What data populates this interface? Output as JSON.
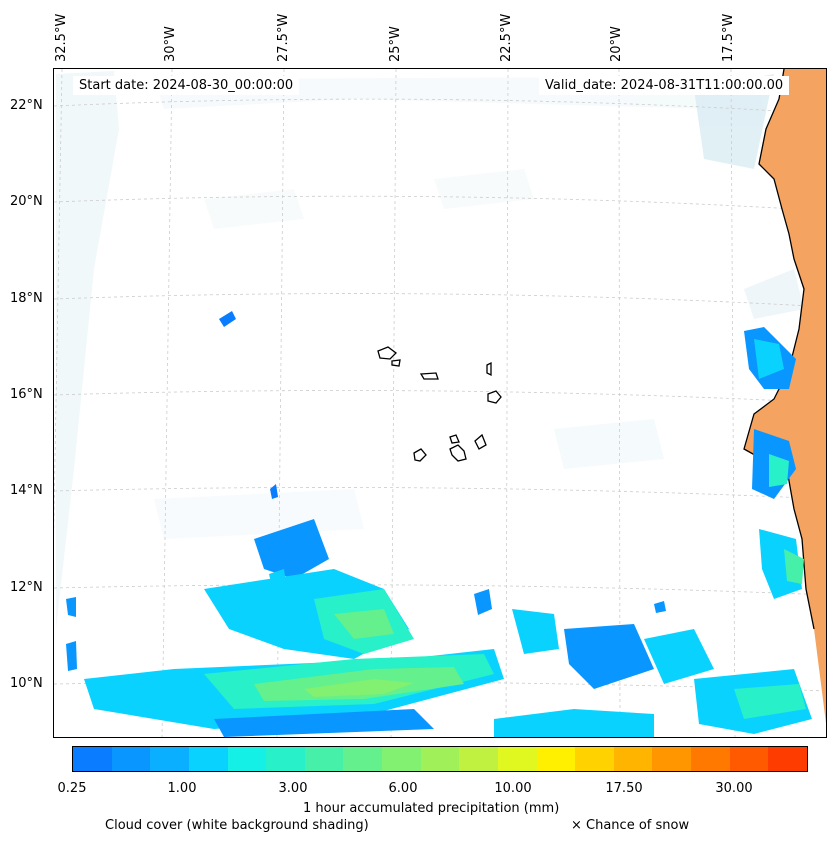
{
  "map": {
    "start_date": "Start date: 2024-08-30_00:00:00",
    "valid_date": "Valid_date: 2024-08-31T11:00:00.00",
    "lon_labels": [
      "32.5°W",
      "30°W",
      "27.5°W",
      "25°W",
      "22.5°W",
      "20°W",
      "17.5°W"
    ],
    "lat_labels": [
      "22°N",
      "20°N",
      "18°N",
      "16°N",
      "14°N",
      "12°N",
      "10°N"
    ],
    "land_color": "#f4a460",
    "coastline_color": "#000000",
    "gridline_style": "dashed light gray"
  },
  "colorbar": {
    "colors": [
      "#0a7cff",
      "#0a96ff",
      "#0ab0ff",
      "#0ad2ff",
      "#14f0e6",
      "#28f0c8",
      "#46f0a8",
      "#64f08c",
      "#82f070",
      "#a0f05a",
      "#c0f040",
      "#e0f820",
      "#fff000",
      "#ffd200",
      "#ffb400",
      "#ff9600",
      "#ff7800",
      "#ff5a00",
      "#ff3c00"
    ],
    "tick_labels": [
      "0.25",
      "1.00",
      "3.00",
      "6.00",
      "10.00",
      "17.50",
      "30.00"
    ],
    "label": "1 hour accumulated precipitation (mm)"
  },
  "legend": {
    "cloud_cover": "Cloud cover (white background shading)",
    "snow": "× Chance of snow"
  }
}
